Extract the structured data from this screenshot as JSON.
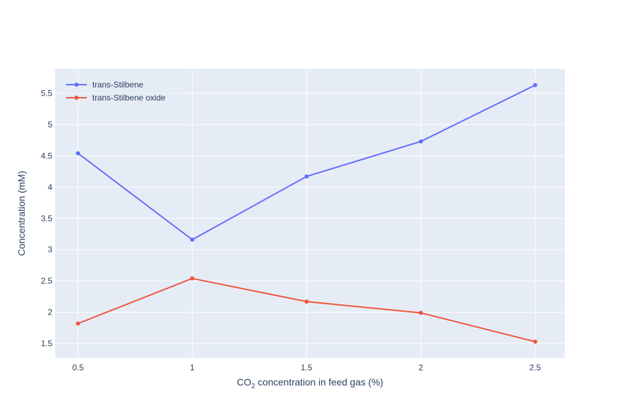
{
  "chart_data": {
    "type": "line",
    "x": [
      0.5,
      1,
      1.5,
      2,
      2.5
    ],
    "x_tick_labels": [
      "0.5",
      "1",
      "1.5",
      "2",
      "2.5"
    ],
    "y_tick_values": [
      1.5,
      2,
      2.5,
      3,
      3.5,
      4,
      4.5,
      5,
      5.5
    ],
    "y_tick_labels": [
      "1.5",
      "2",
      "2.5",
      "3",
      "3.5",
      "4",
      "4.5",
      "5",
      "5.5"
    ],
    "xlim": [
      0.4,
      2.63
    ],
    "ylim": [
      1.27,
      5.89
    ],
    "xlabel": {
      "prefix": "CO",
      "subscript": "2",
      "suffix": " concentration in feed gas (%)"
    },
    "ylabel": "Concentration (mM)",
    "grid": true,
    "legend_position": "top-left",
    "series": [
      {
        "name": "trans-Stilbene",
        "color": "#636efa",
        "values": [
          4.54,
          3.16,
          4.17,
          4.73,
          5.63
        ]
      },
      {
        "name": "trans-Stilbene oxide",
        "color": "#ef553b",
        "values": [
          1.82,
          2.54,
          2.17,
          1.99,
          1.53
        ]
      }
    ],
    "plot_background": "#e5ecf6",
    "grid_color": "#ffffff"
  }
}
